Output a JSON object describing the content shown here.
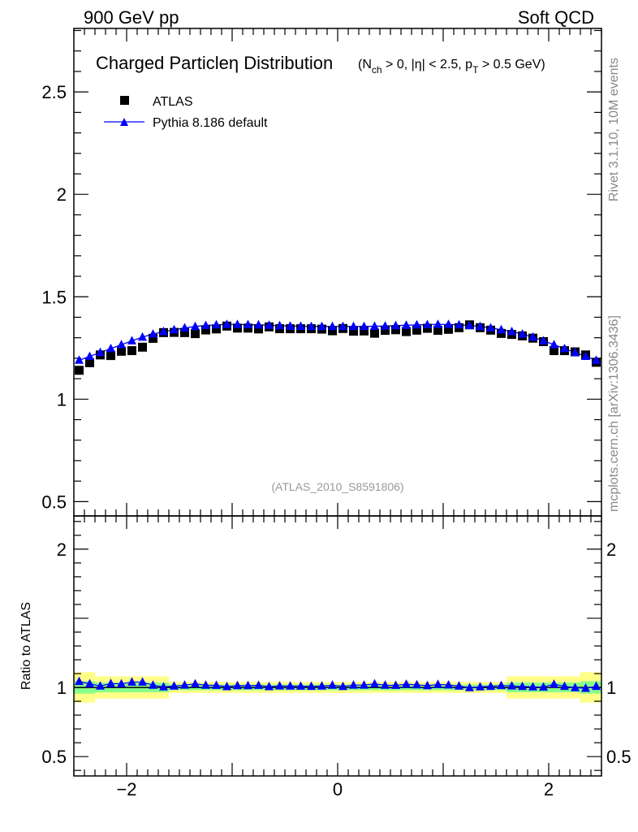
{
  "header": {
    "left": "900 GeV pp",
    "right": "Soft QCD"
  },
  "side": {
    "upper": "Rivet 3.1.10,  10M events",
    "lower": "mcplots.cern.ch [arXiv:1306.3436]"
  },
  "chart_data": [
    {
      "type": "scatter",
      "panel": "main",
      "title_main": "Charged Particle",
      "title_eta": "η",
      "title_rest": " Distribution",
      "title_sub": "(N",
      "title_sub_ch": "ch",
      "title_sub_mid": " > 0, |η| < 2.5, p",
      "title_sub_T": "T",
      "title_sub_end": " > 0.5 GeV)",
      "analysis_label": "(ATLAS_2010_S8591806)",
      "xlim": [
        -2.5,
        2.5
      ],
      "ylim": [
        0.43,
        2.81
      ],
      "yticks": [
        "0.5",
        "1",
        "1.5",
        "2",
        "2.5"
      ],
      "legend_position": "top-left",
      "x": [
        -2.45,
        -2.35,
        -2.25,
        -2.15,
        -2.05,
        -1.95,
        -1.85,
        -1.75,
        -1.65,
        -1.55,
        -1.45,
        -1.35,
        -1.25,
        -1.15,
        -1.05,
        -0.95,
        -0.85,
        -0.75,
        -0.65,
        -0.55,
        -0.45,
        -0.35,
        -0.25,
        -0.15,
        -0.05,
        0.05,
        0.15,
        0.25,
        0.35,
        0.45,
        0.55,
        0.65,
        0.75,
        0.85,
        0.95,
        1.05,
        1.15,
        1.25,
        1.35,
        1.45,
        1.55,
        1.65,
        1.75,
        1.85,
        1.95,
        2.05,
        2.15,
        2.25,
        2.35,
        2.45
      ],
      "series": [
        {
          "name": "ATLAS",
          "marker": "square",
          "color": "#000000",
          "values": [
            1.141,
            1.178,
            1.216,
            1.213,
            1.234,
            1.237,
            1.254,
            1.297,
            1.325,
            1.326,
            1.325,
            1.32,
            1.338,
            1.343,
            1.357,
            1.347,
            1.347,
            1.343,
            1.353,
            1.344,
            1.344,
            1.344,
            1.344,
            1.342,
            1.334,
            1.345,
            1.332,
            1.333,
            1.322,
            1.336,
            1.339,
            1.33,
            1.337,
            1.346,
            1.336,
            1.341,
            1.349,
            1.363,
            1.349,
            1.337,
            1.321,
            1.316,
            1.309,
            1.298,
            1.281,
            1.237,
            1.237,
            1.231,
            1.216,
            1.18
          ]
        },
        {
          "name": "Pythia 8.186 default",
          "marker": "triangle",
          "color": "#0000ff",
          "values": [
            1.19,
            1.209,
            1.228,
            1.247,
            1.266,
            1.285,
            1.303,
            1.318,
            1.33,
            1.339,
            1.348,
            1.355,
            1.36,
            1.363,
            1.365,
            1.365,
            1.364,
            1.363,
            1.361,
            1.359,
            1.357,
            1.356,
            1.355,
            1.355,
            1.355,
            1.355,
            1.355,
            1.355,
            1.356,
            1.357,
            1.359,
            1.361,
            1.363,
            1.364,
            1.365,
            1.365,
            1.363,
            1.36,
            1.355,
            1.348,
            1.339,
            1.33,
            1.318,
            1.303,
            1.285,
            1.266,
            1.247,
            1.228,
            1.209,
            1.19
          ]
        }
      ]
    },
    {
      "type": "scatter",
      "panel": "ratio",
      "ylabel": "Ratio to ATLAS",
      "xlim": [
        -2.5,
        2.5
      ],
      "ylim": [
        0.36,
        2.24
      ],
      "yticks": [
        "0.5",
        "1",
        "2"
      ],
      "xticks": [
        "−2",
        "0",
        "2"
      ],
      "band_colors": {
        "inner": "#88ff88",
        "outer": "#ffff88"
      },
      "bands": [
        {
          "x0": -2.5,
          "x1": -2.3,
          "inner": 0.045,
          "outer": 0.11
        },
        {
          "x0": -2.3,
          "x1": -1.6,
          "inner": 0.035,
          "outer": 0.08
        },
        {
          "x0": -1.6,
          "x1": 1.6,
          "inner": 0.02,
          "outer": 0.04
        },
        {
          "x0": 1.6,
          "x1": 2.3,
          "inner": 0.035,
          "outer": 0.08
        },
        {
          "x0": 2.3,
          "x1": 2.5,
          "inner": 0.045,
          "outer": 0.11
        }
      ],
      "reference_line": 1,
      "series": [
        {
          "name": "Pythia 8.186 default",
          "marker": "triangle",
          "color": "#0000ff",
          "values": [
            1.043,
            1.026,
            1.01,
            1.028,
            1.026,
            1.039,
            1.039,
            1.016,
            1.004,
            1.01,
            1.017,
            1.026,
            1.016,
            1.015,
            1.006,
            1.013,
            1.013,
            1.015,
            1.006,
            1.011,
            1.01,
            1.009,
            1.008,
            1.01,
            1.016,
            1.007,
            1.017,
            1.017,
            1.026,
            1.016,
            1.015,
            1.023,
            1.019,
            1.013,
            1.022,
            1.018,
            1.01,
            0.998,
            1.004,
            1.008,
            1.014,
            1.011,
            1.007,
            1.004,
            1.003,
            1.023,
            1.008,
            0.998,
            0.994,
            1.008
          ]
        }
      ]
    }
  ]
}
